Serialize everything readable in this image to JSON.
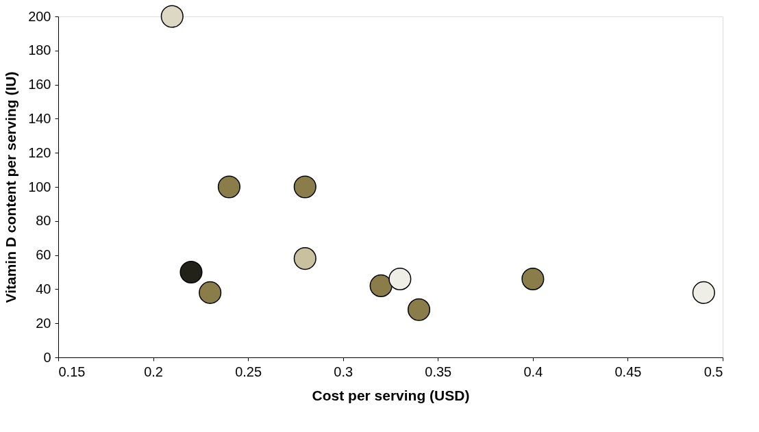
{
  "chart_data": {
    "type": "scatter",
    "xlabel": "Cost per serving (USD)",
    "ylabel": "Vitamin D content per serving (IU)",
    "x": [
      0.21,
      0.24,
      0.28,
      0.22,
      0.23,
      0.28,
      0.32,
      0.33,
      0.34,
      0.4,
      0.49
    ],
    "values": [
      200,
      100,
      100,
      50,
      38,
      58,
      42,
      46,
      28,
      46,
      38
    ],
    "colors": [
      "#ddd8c4",
      "#8b7d4a",
      "#8b7d4a",
      "#222218",
      "#8b7d4a",
      "#c9c0a0",
      "#8b7d4a",
      "#eeeee6",
      "#8b7d4a",
      "#8b7d4a",
      "#eeeee6"
    ],
    "xlim": [
      0.15,
      0.5
    ],
    "xticks": [
      0.15,
      0.2,
      0.25,
      0.3,
      0.35,
      0.4,
      0.45,
      0.5
    ],
    "ylim": [
      0,
      200
    ],
    "yticks": [
      0,
      20,
      40,
      60,
      80,
      100,
      120,
      140,
      160,
      180,
      200
    ],
    "marker": "circle",
    "grid": false,
    "legend": false
  }
}
